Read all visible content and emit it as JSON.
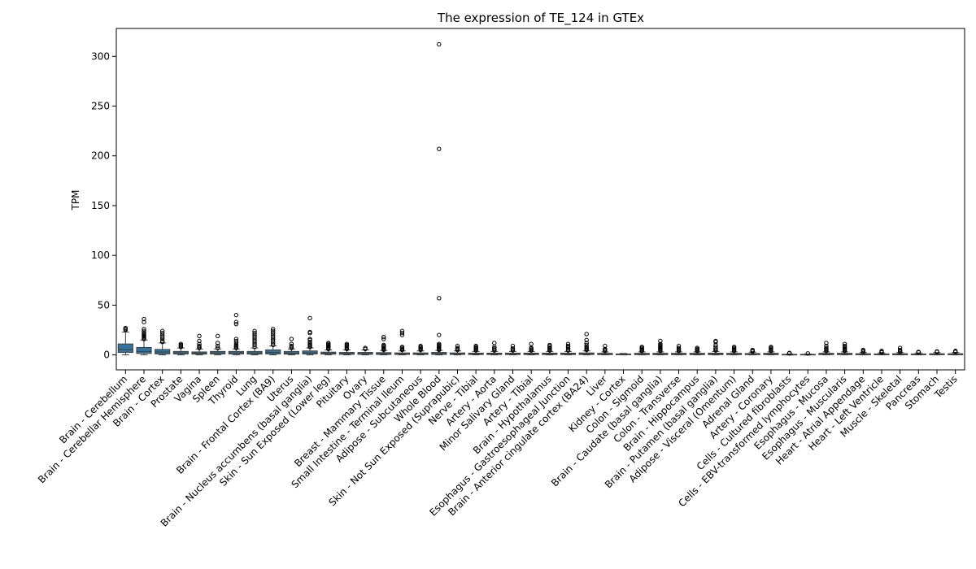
{
  "chart_data": {
    "type": "box",
    "title": "The expression of TE_124 in GTEx",
    "xlabel": "",
    "ylabel": "TPM",
    "ylim": [
      -15,
      328
    ],
    "yticks": [
      0,
      50,
      100,
      150,
      200,
      250,
      300
    ],
    "legend": "none",
    "grid": false,
    "box_color": "#3274a1",
    "categories": [
      "Brain - Cerebellum",
      "Brain - Cerebellar Hemisphere",
      "Brain - Cortex",
      "Prostate",
      "Vagina",
      "Spleen",
      "Thyroid",
      "Lung",
      "Brain - Frontal Cortex (BA9)",
      "Uterus",
      "Brain - Nucleus accumbens (basal ganglia)",
      "Skin - Sun Exposed (Lower leg)",
      "Pituitary",
      "Ovary",
      "Breast - Mammary Tissue",
      "Small Intestine - Terminal Ileum",
      "Adipose - Subcutaneous",
      "Whole Blood",
      "Skin - Not Sun Exposed (Suprapubic)",
      "Nerve - Tibial",
      "Artery - Aorta",
      "Minor Salivary Gland",
      "Artery - Tibial",
      "Brain - Hypothalamus",
      "Esophagus - Gastroesophageal Junction",
      "Brain - Anterior cingulate cortex (BA24)",
      "Liver",
      "Kidney - Cortex",
      "Colon - Sigmoid",
      "Brain - Caudate (basal ganglia)",
      "Colon - Transverse",
      "Brain - Hippocampus",
      "Brain - Putamen (basal ganglia)",
      "Adipose - Visceral (Omentum)",
      "Adrenal Gland",
      "Artery - Coronary",
      "Cells - Cultured fibroblasts",
      "Cells - EBV-transformed lymphocytes",
      "Esophagus - Mucosa",
      "Esophagus - Muscularis",
      "Heart - Atrial Appendage",
      "Heart - Left Ventricle",
      "Muscle - Skeletal",
      "Pancreas",
      "Stomach",
      "Testis"
    ],
    "boxes": [
      {
        "q1": 2.5,
        "median": 5.5,
        "q3": 11.0,
        "whisker_low": 0,
        "whisker_high": 23,
        "outliers": [
          25,
          26,
          27
        ]
      },
      {
        "q1": 1.5,
        "median": 3.5,
        "q3": 7.5,
        "whisker_low": 0,
        "whisker_high": 15,
        "outliers": [
          16,
          17,
          18,
          19,
          20,
          21,
          22,
          24,
          26,
          33,
          36
        ]
      },
      {
        "q1": 1.0,
        "median": 3.0,
        "q3": 5.5,
        "whisker_low": 0,
        "whisker_high": 12,
        "outliers": [
          13,
          14,
          16,
          18,
          20,
          22,
          24
        ]
      },
      {
        "q1": 1.0,
        "median": 2.0,
        "q3": 3.5,
        "whisker_low": 0,
        "whisker_high": 7,
        "outliers": [
          8,
          9,
          10,
          11
        ]
      },
      {
        "q1": 0.8,
        "median": 1.8,
        "q3": 3.0,
        "whisker_low": 0,
        "whisker_high": 6,
        "outliers": [
          7,
          8,
          9,
          11,
          14,
          19
        ]
      },
      {
        "q1": 1.0,
        "median": 2.0,
        "q3": 3.5,
        "whisker_low": 0,
        "whisker_high": 6,
        "outliers": [
          7,
          9,
          12,
          19
        ]
      },
      {
        "q1": 1.0,
        "median": 2.0,
        "q3": 3.5,
        "whisker_low": 0,
        "whisker_high": 6,
        "outliers": [
          7,
          8,
          9,
          10,
          12,
          14,
          16,
          31,
          33,
          40
        ]
      },
      {
        "q1": 0.8,
        "median": 2.0,
        "q3": 3.5,
        "whisker_low": 0,
        "whisker_high": 7,
        "outliers": [
          8,
          10,
          12,
          14,
          16,
          18,
          20,
          22,
          24
        ]
      },
      {
        "q1": 1.0,
        "median": 2.5,
        "q3": 5.0,
        "whisker_low": 0,
        "whisker_high": 9,
        "outliers": [
          10,
          12,
          14,
          16,
          18,
          20,
          22,
          24,
          26
        ]
      },
      {
        "q1": 0.8,
        "median": 1.8,
        "q3": 3.5,
        "whisker_low": 0,
        "whisker_high": 6,
        "outliers": [
          7,
          8,
          9,
          11,
          16
        ]
      },
      {
        "q1": 1.0,
        "median": 2.0,
        "q3": 4.0,
        "whisker_low": 0,
        "whisker_high": 7,
        "outliers": [
          8,
          9,
          10,
          11,
          13,
          15,
          16,
          22,
          23,
          37
        ]
      },
      {
        "q1": 0.8,
        "median": 1.5,
        "q3": 2.8,
        "whisker_low": 0,
        "whisker_high": 5,
        "outliers": [
          6,
          7,
          8,
          9,
          10,
          11,
          12
        ]
      },
      {
        "q1": 0.6,
        "median": 1.3,
        "q3": 2.5,
        "whisker_low": 0,
        "whisker_high": 5,
        "outliers": [
          6,
          7,
          8,
          9,
          10,
          11
        ]
      },
      {
        "q1": 0.6,
        "median": 1.2,
        "q3": 2.5,
        "whisker_low": 0,
        "whisker_high": 5,
        "outliers": [
          6,
          7
        ]
      },
      {
        "q1": 0.5,
        "median": 1.2,
        "q3": 2.3,
        "whisker_low": 0,
        "whisker_high": 4.5,
        "outliers": [
          5,
          6,
          7,
          8,
          9,
          10,
          16,
          18
        ]
      },
      {
        "q1": 0.5,
        "median": 1.0,
        "q3": 2.0,
        "whisker_low": 0,
        "whisker_high": 4,
        "outliers": [
          5,
          6,
          7,
          8,
          20,
          22,
          24
        ]
      },
      {
        "q1": 0.5,
        "median": 1.0,
        "q3": 2.0,
        "whisker_low": 0,
        "whisker_high": 4,
        "outliers": [
          5,
          6,
          7,
          8,
          9
        ]
      },
      {
        "q1": 0.5,
        "median": 1.2,
        "q3": 2.5,
        "whisker_low": 0,
        "whisker_high": 4.5,
        "outliers": [
          5,
          6,
          7,
          8,
          9,
          10,
          11,
          20,
          57,
          207,
          312
        ]
      },
      {
        "q1": 0.5,
        "median": 1.0,
        "q3": 2.0,
        "whisker_low": 0,
        "whisker_high": 4,
        "outliers": [
          5,
          6,
          7,
          9
        ]
      },
      {
        "q1": 0.4,
        "median": 0.9,
        "q3": 1.8,
        "whisker_low": 0,
        "whisker_high": 3.5,
        "outliers": [
          4.5,
          5.5,
          6.5,
          7,
          8,
          9
        ]
      },
      {
        "q1": 0.4,
        "median": 0.9,
        "q3": 1.8,
        "whisker_low": 0,
        "whisker_high": 3.5,
        "outliers": [
          4.5,
          5.5,
          6.5,
          8,
          12
        ]
      },
      {
        "q1": 0.4,
        "median": 0.9,
        "q3": 1.8,
        "whisker_low": 0,
        "whisker_high": 3.5,
        "outliers": [
          4.5,
          5.5,
          6.5,
          9
        ]
      },
      {
        "q1": 0.4,
        "median": 0.9,
        "q3": 1.8,
        "whisker_low": 0,
        "whisker_high": 3.5,
        "outliers": [
          4.5,
          5.5,
          6.5,
          7,
          11
        ]
      },
      {
        "q1": 0.4,
        "median": 0.9,
        "q3": 1.8,
        "whisker_low": 0,
        "whisker_high": 3.5,
        "outliers": [
          4.5,
          5.5,
          6.5,
          7.5,
          9,
          10
        ]
      },
      {
        "q1": 0.4,
        "median": 0.9,
        "q3": 1.8,
        "whisker_low": 0,
        "whisker_high": 3.5,
        "outliers": [
          4.5,
          5.5,
          7,
          8,
          9,
          11
        ]
      },
      {
        "q1": 0.4,
        "median": 1.0,
        "q3": 2.0,
        "whisker_low": 0,
        "whisker_high": 4,
        "outliers": [
          5,
          6,
          7,
          8,
          10,
          12,
          15,
          21
        ]
      },
      {
        "q1": 0.3,
        "median": 0.8,
        "q3": 1.6,
        "whisker_low": 0,
        "whisker_high": 3,
        "outliers": [
          4,
          5,
          6,
          9
        ]
      },
      {
        "q1": 0.2,
        "median": 0.5,
        "q3": 1.0,
        "whisker_low": 0,
        "whisker_high": 1.5,
        "outliers": []
      },
      {
        "q1": 0.3,
        "median": 0.8,
        "q3": 1.6,
        "whisker_low": 0,
        "whisker_high": 3,
        "outliers": [
          4,
          5,
          6,
          7,
          8
        ]
      },
      {
        "q1": 0.3,
        "median": 0.8,
        "q3": 1.6,
        "whisker_low": 0,
        "whisker_high": 3,
        "outliers": [
          4,
          5,
          6,
          7,
          8,
          9,
          10,
          11,
          14
        ]
      },
      {
        "q1": 0.3,
        "median": 0.8,
        "q3": 1.6,
        "whisker_low": 0,
        "whisker_high": 3,
        "outliers": [
          4,
          5,
          6,
          7,
          9
        ]
      },
      {
        "q1": 0.3,
        "median": 0.8,
        "q3": 1.6,
        "whisker_low": 0,
        "whisker_high": 3,
        "outliers": [
          4,
          5,
          6,
          7
        ]
      },
      {
        "q1": 0.3,
        "median": 0.9,
        "q3": 1.8,
        "whisker_low": 0,
        "whisker_high": 3.5,
        "outliers": [
          4.5,
          5.5,
          6.5,
          8,
          10,
          13,
          14
        ]
      },
      {
        "q1": 0.3,
        "median": 0.8,
        "q3": 1.6,
        "whisker_low": 0,
        "whisker_high": 3,
        "outliers": [
          4,
          5,
          6,
          7,
          8
        ]
      },
      {
        "q1": 0.3,
        "median": 0.7,
        "q3": 1.4,
        "whisker_low": 0,
        "whisker_high": 2.8,
        "outliers": [
          3.5,
          4,
          5
        ]
      },
      {
        "q1": 0.3,
        "median": 0.8,
        "q3": 1.6,
        "whisker_low": 0,
        "whisker_high": 3,
        "outliers": [
          4,
          5,
          6,
          7,
          8
        ]
      },
      {
        "q1": 0.1,
        "median": 0.3,
        "q3": 0.6,
        "whisker_low": 0,
        "whisker_high": 1.0,
        "outliers": [
          1.5,
          2
        ]
      },
      {
        "q1": 0.1,
        "median": 0.3,
        "q3": 0.6,
        "whisker_low": 0,
        "whisker_high": 1.0,
        "outliers": [
          1.5
        ]
      },
      {
        "q1": 0.3,
        "median": 0.8,
        "q3": 1.6,
        "whisker_low": 0,
        "whisker_high": 3,
        "outliers": [
          4,
          5,
          6,
          7,
          9,
          12
        ]
      },
      {
        "q1": 0.3,
        "median": 0.8,
        "q3": 1.6,
        "whisker_low": 0,
        "whisker_high": 3,
        "outliers": [
          4,
          5,
          6,
          7,
          8,
          9,
          11
        ]
      },
      {
        "q1": 0.2,
        "median": 0.6,
        "q3": 1.2,
        "whisker_low": 0,
        "whisker_high": 2.4,
        "outliers": [
          3,
          4,
          5
        ]
      },
      {
        "q1": 0.2,
        "median": 0.5,
        "q3": 1.0,
        "whisker_low": 0,
        "whisker_high": 2,
        "outliers": [
          2.5,
          3,
          4
        ]
      },
      {
        "q1": 0.2,
        "median": 0.6,
        "q3": 1.2,
        "whisker_low": 0,
        "whisker_high": 2.4,
        "outliers": [
          3,
          4,
          5,
          7
        ]
      },
      {
        "q1": 0.2,
        "median": 0.5,
        "q3": 1.0,
        "whisker_low": 0,
        "whisker_high": 2,
        "outliers": [
          2.5,
          3
        ]
      },
      {
        "q1": 0.2,
        "median": 0.6,
        "q3": 1.2,
        "whisker_low": 0,
        "whisker_high": 2.4,
        "outliers": [
          3,
          3.5
        ]
      },
      {
        "q1": 0.2,
        "median": 0.6,
        "q3": 1.2,
        "whisker_low": 0,
        "whisker_high": 2.4,
        "outliers": [
          3,
          3.5,
          4
        ]
      }
    ]
  }
}
